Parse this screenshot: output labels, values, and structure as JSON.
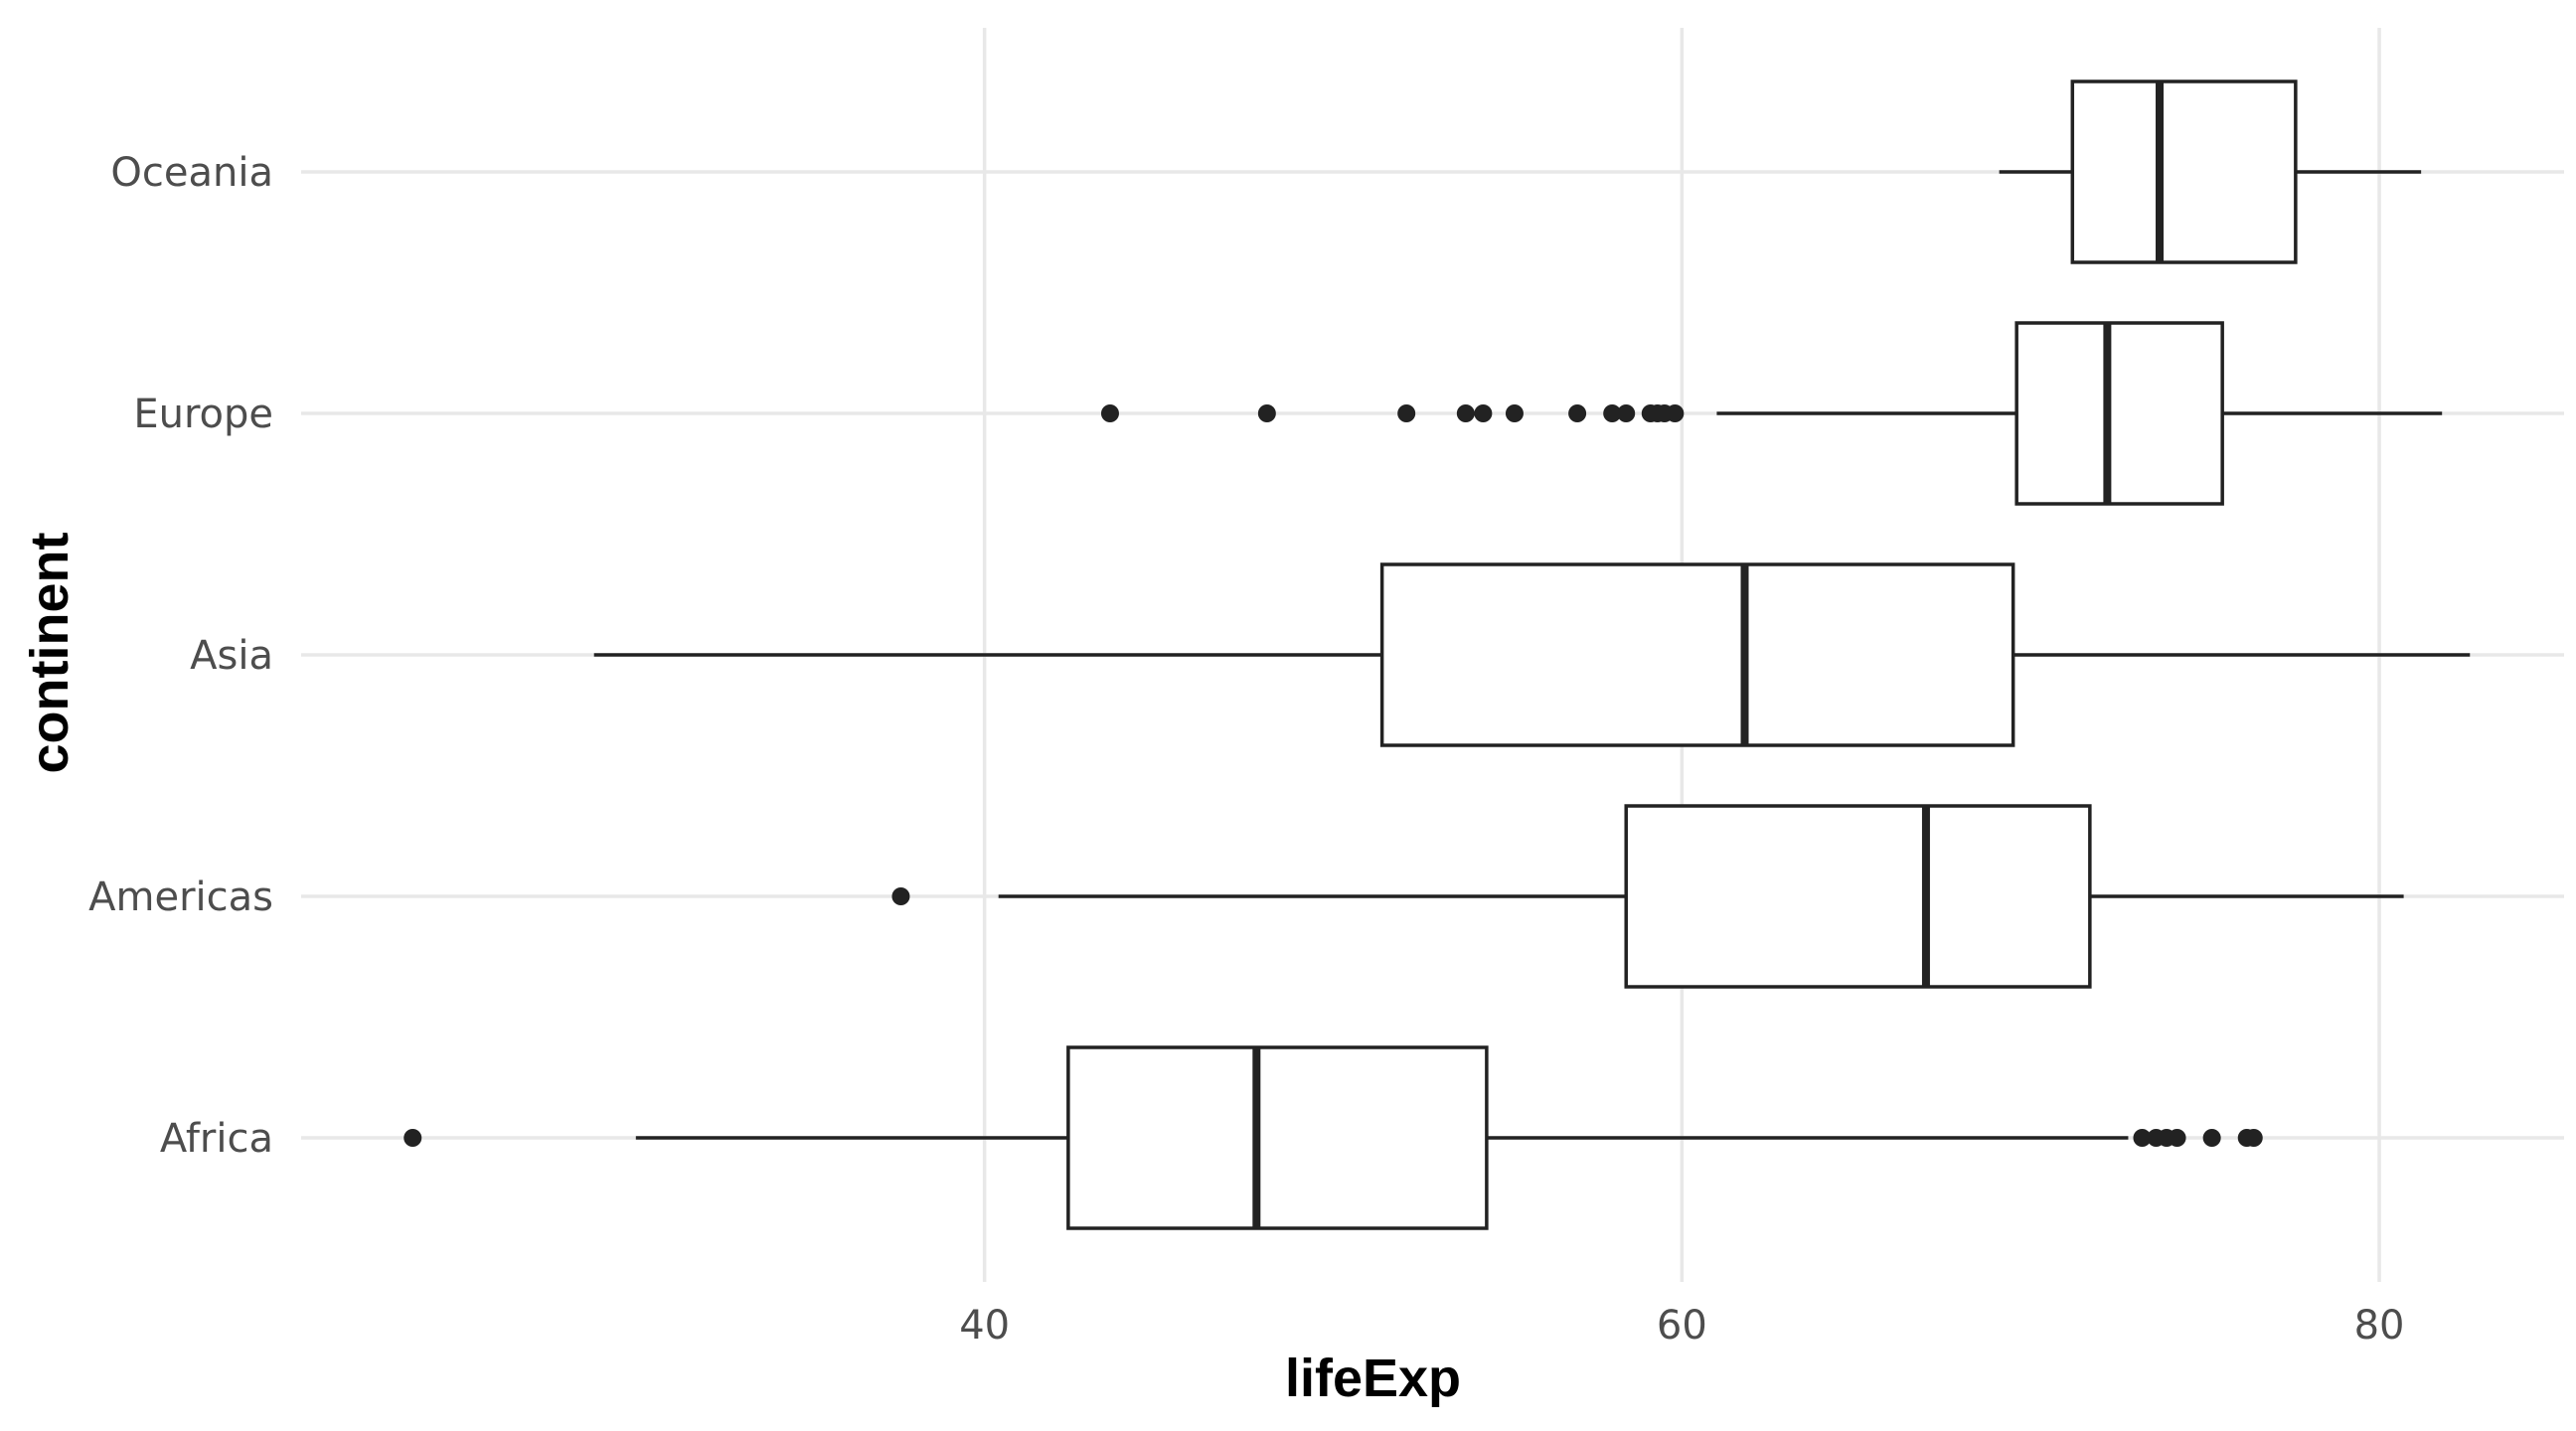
{
  "chart_data": {
    "type": "boxplot",
    "orientation": "horizontal",
    "xlabel": "lifeExp",
    "ylabel": "continent",
    "xlim": [
      20.4,
      85.3
    ],
    "xticks": [
      40,
      60,
      80
    ],
    "xtick_labels": [
      "40",
      "60",
      "80"
    ],
    "grid": true,
    "categories": [
      "Africa",
      "Americas",
      "Asia",
      "Europe",
      "Oceania"
    ],
    "boxes": [
      {
        "category": "Africa",
        "whisker_low": 30.0,
        "q1": 42.4,
        "median": 47.8,
        "q3": 54.4,
        "whisker_high": 72.8,
        "outliers": [
          23.6,
          73.2,
          73.6,
          73.9,
          74.2,
          75.2,
          76.2,
          76.4
        ]
      },
      {
        "category": "Americas",
        "whisker_low": 40.4,
        "q1": 58.4,
        "median": 67.0,
        "q3": 71.7,
        "whisker_high": 80.7,
        "outliers": [
          37.6
        ]
      },
      {
        "category": "Asia",
        "whisker_low": 28.8,
        "q1": 51.4,
        "median": 61.8,
        "q3": 69.5,
        "whisker_high": 82.6,
        "outliers": []
      },
      {
        "category": "Europe",
        "whisker_low": 61.0,
        "q1": 69.6,
        "median": 72.2,
        "q3": 75.5,
        "whisker_high": 81.8,
        "outliers": [
          43.6,
          48.1,
          52.1,
          53.8,
          54.3,
          55.2,
          57.0,
          58.0,
          58.4,
          59.1,
          59.3,
          59.5,
          59.8
        ]
      },
      {
        "category": "Oceania",
        "whisker_low": 69.1,
        "q1": 71.2,
        "median": 73.7,
        "q3": 77.6,
        "whisker_high": 81.2,
        "outliers": []
      }
    ]
  }
}
